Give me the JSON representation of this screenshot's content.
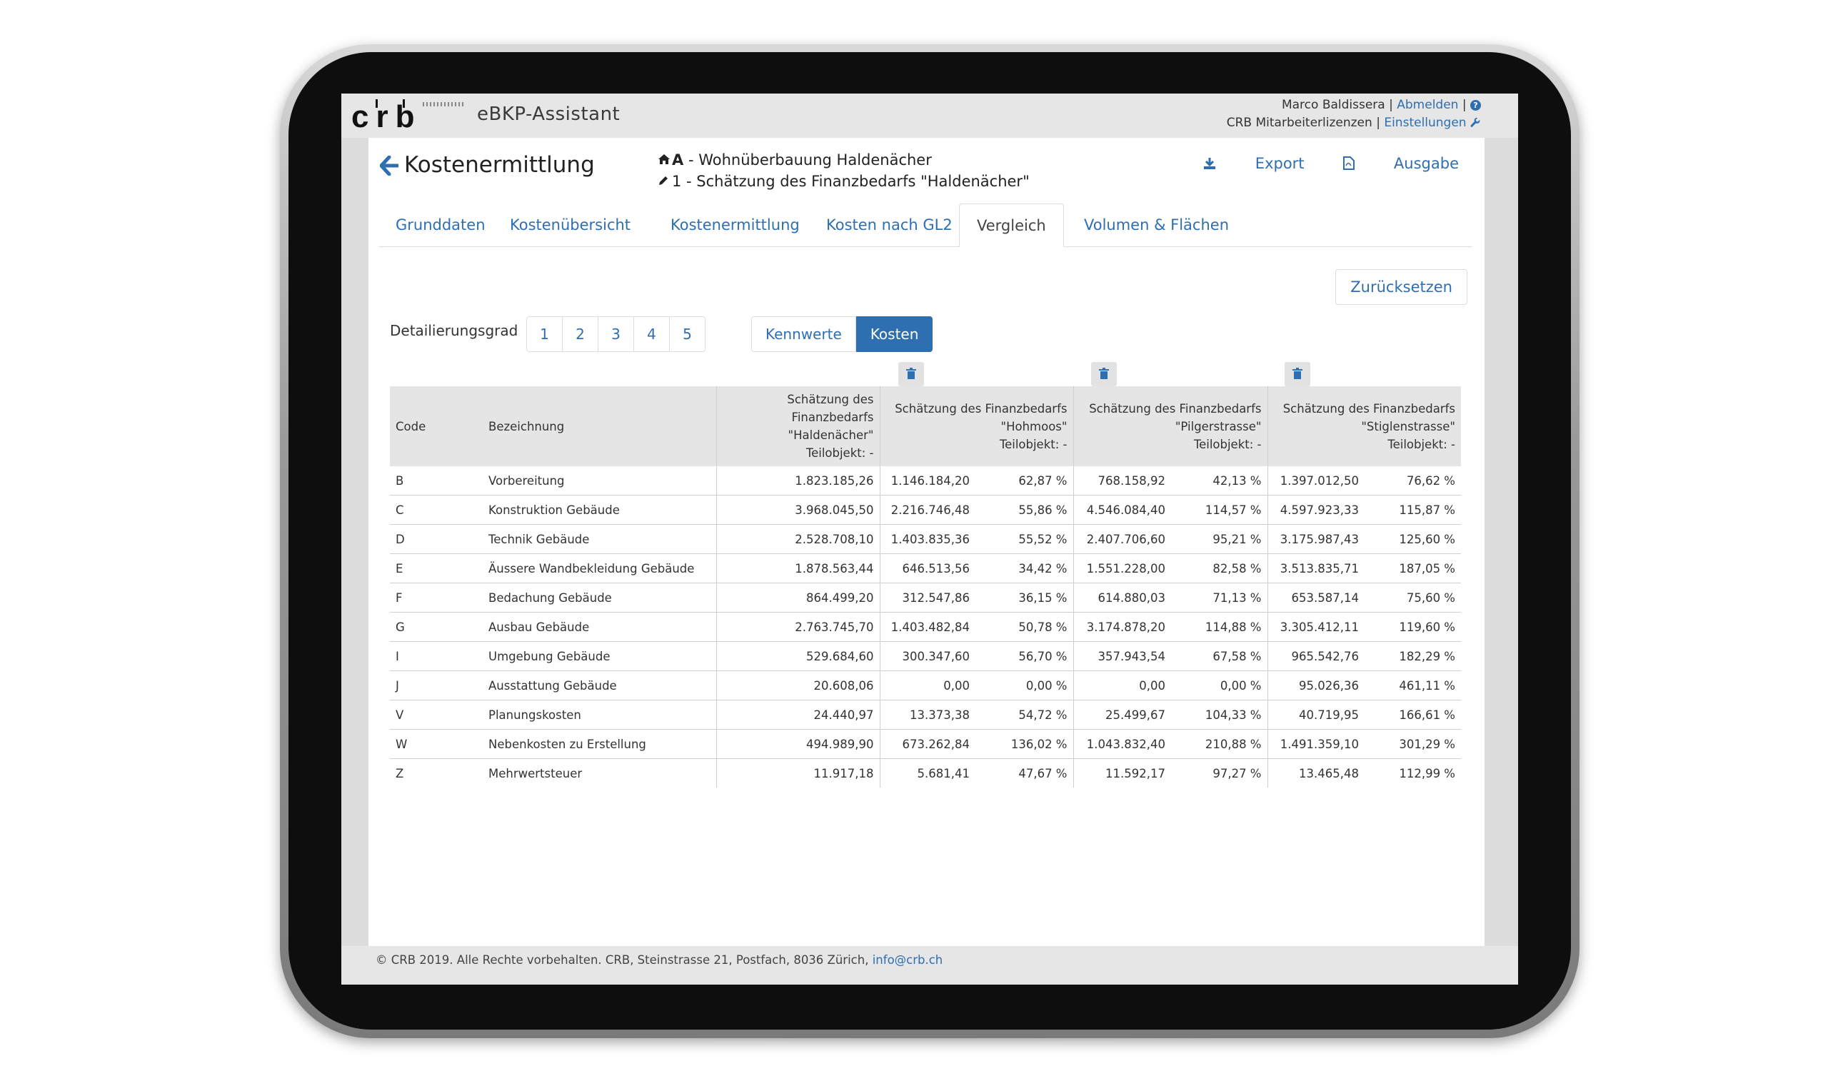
{
  "app": {
    "logo": "crb",
    "title": "eBKP-Assistant",
    "user_name": "Marco Baldissera",
    "logout": "Abmelden",
    "license": "CRB Mitarbeiterlizenzen",
    "settings": "Einstellungen"
  },
  "page": {
    "title": "Kostenermittlung",
    "project_line": "A - Wohnüberbauung Haldenächer",
    "project_prefix": "A",
    "project_name": "- Wohnüberbauung Haldenächer",
    "estimate_line": "1 - Schätzung des Finanzbedarfs \"Haldenächer\"",
    "export": "Export",
    "output": "Ausgabe"
  },
  "tabs": [
    "Grunddaten",
    "Kostenübersicht",
    "Kostenermittlung",
    "Kosten nach GL2",
    "Vergleich",
    "Volumen & Flächen"
  ],
  "active_tab": "Vergleich",
  "controls": {
    "reset": "Zurücksetzen",
    "detail_label": "Detailierungsgrad",
    "levels": [
      "1",
      "2",
      "3",
      "4",
      "5"
    ],
    "modes": [
      "Kennwerte",
      "Kosten"
    ],
    "active_mode": "Kosten"
  },
  "table": {
    "headers": {
      "code": "Code",
      "name": "Bezeichnung",
      "base": [
        "Schätzung des",
        "Finanzbedarfs",
        "\"Haldenächer\"",
        "Teilobjekt: -"
      ],
      "comp1": [
        "Schätzung des Finanzbedarfs",
        "\"Hohmoos\"",
        "Teilobjekt: -"
      ],
      "comp2": [
        "Schätzung des Finanzbedarfs",
        "\"Pilgerstrasse\"",
        "Teilobjekt: -"
      ],
      "comp3": [
        "Schätzung des Finanzbedarfs",
        "\"Stiglenstrasse\"",
        "Teilobjekt: -"
      ]
    },
    "rows": [
      [
        "B",
        "Vorbereitung",
        "1.823.185,26",
        "1.146.184,20",
        "62,87 %",
        "768.158,92",
        "42,13 %",
        "1.397.012,50",
        "76,62 %"
      ],
      [
        "C",
        "Konstruktion Gebäude",
        "3.968.045,50",
        "2.216.746,48",
        "55,86 %",
        "4.546.084,40",
        "114,57 %",
        "4.597.923,33",
        "115,87 %"
      ],
      [
        "D",
        "Technik Gebäude",
        "2.528.708,10",
        "1.403.835,36",
        "55,52 %",
        "2.407.706,60",
        "95,21 %",
        "3.175.987,43",
        "125,60 %"
      ],
      [
        "E",
        "Äussere Wandbekleidung Gebäude",
        "1.878.563,44",
        "646.513,56",
        "34,42 %",
        "1.551.228,00",
        "82,58 %",
        "3.513.835,71",
        "187,05 %"
      ],
      [
        "F",
        "Bedachung Gebäude",
        "864.499,20",
        "312.547,86",
        "36,15 %",
        "614.880,03",
        "71,13 %",
        "653.587,14",
        "75,60 %"
      ],
      [
        "G",
        "Ausbau Gebäude",
        "2.763.745,70",
        "1.403.482,84",
        "50,78 %",
        "3.174.878,20",
        "114,88 %",
        "3.305.412,11",
        "119,60 %"
      ],
      [
        "I",
        "Umgebung Gebäude",
        "529.684,60",
        "300.347,60",
        "56,70 %",
        "357.943,54",
        "67,58 %",
        "965.542,76",
        "182,29 %"
      ],
      [
        "J",
        "Ausstattung Gebäude",
        "20.608,06",
        "0,00",
        "0,00 %",
        "0,00",
        "0,00 %",
        "95.026,36",
        "461,11 %"
      ],
      [
        "V",
        "Planungskosten",
        "24.440,97",
        "13.373,38",
        "54,72 %",
        "25.499,67",
        "104,33 %",
        "40.719,95",
        "166,61 %"
      ],
      [
        "W",
        "Nebenkosten zu Erstellung",
        "494.989,90",
        "673.262,84",
        "136,02 %",
        "1.043.832,40",
        "210,88 %",
        "1.491.359,10",
        "301,29 %"
      ],
      [
        "Z",
        "Mehrwertsteuer",
        "11.917,18",
        "5.681,41",
        "47,67 %",
        "11.592,17",
        "97,27 %",
        "13.465,48",
        "112,99 %"
      ]
    ]
  },
  "footer": {
    "text": "© CRB 2019. Alle Rechte vorbehalten. CRB, Steinstrasse 21, Postfach, 8036 Zürich,",
    "email": "info@crb.ch"
  },
  "colors": {
    "accent": "#2d6fb1",
    "header_bg": "#e6e6e6",
    "table_header_bg": "#e5e5e5"
  }
}
